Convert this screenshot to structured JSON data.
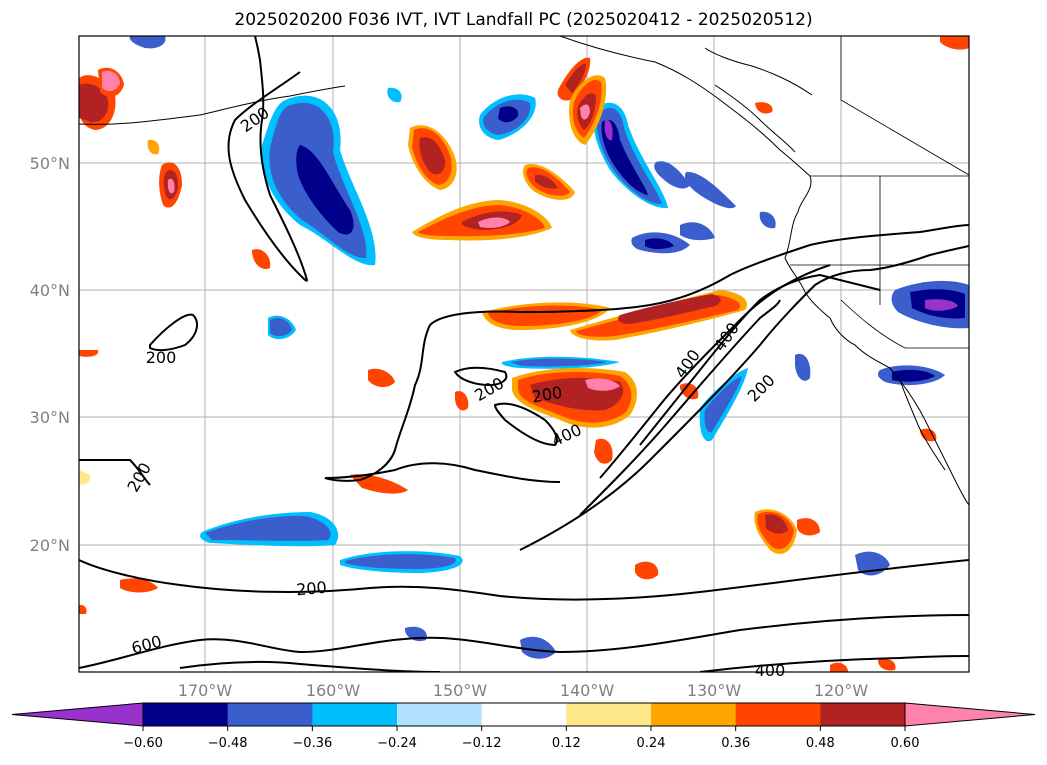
{
  "title": "2025020200 F036 IVT, IVT Landfall PC (2025020412 - 2025020512)",
  "lat_labels": [
    "50°N",
    "40°N",
    "30°N",
    "20°N"
  ],
  "lon_labels": [
    "170°W",
    "160°W",
    "150°W",
    "140°W",
    "130°W",
    "120°W"
  ],
  "contour_labels": [
    "200",
    "200",
    "200",
    "200",
    "200",
    "200",
    "200",
    "400",
    "400",
    "400",
    "600",
    "400"
  ],
  "colorbar": {
    "extend": "both",
    "tick_labels": [
      "−0.60",
      "−0.48",
      "−0.36",
      "−0.24",
      "−0.12",
      "0.12",
      "0.24",
      "0.36",
      "0.48",
      "0.60"
    ],
    "colors": [
      "#9932cc",
      "#00008b",
      "#3a5fcd",
      "#00bfff",
      "#b0e2ff",
      "#ffffff",
      "#ffe88a",
      "#ffa500",
      "#ff4500",
      "#b22222",
      "#ff82ab"
    ]
  },
  "colors": {
    "contour_line": "#000000",
    "coastline": "#000000",
    "grid": "#b0b0b0"
  }
}
